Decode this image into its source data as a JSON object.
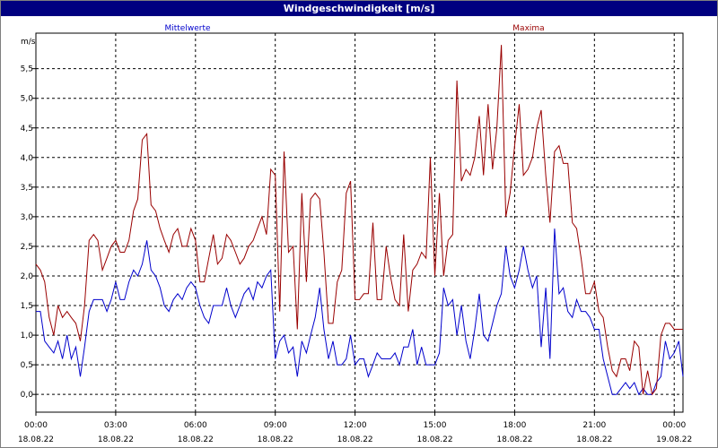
{
  "window": {
    "title": "Windgeschwindigkeit [m/s]"
  },
  "chart_data": {
    "type": "line",
    "title": "Windgeschwindigkeit [m/s]",
    "ylabel": "m/s",
    "ylim": [
      -0.3,
      6.1
    ],
    "y_ticks": [
      "0,0",
      "0,5",
      "1,0",
      "1,5",
      "2,0",
      "2,5",
      "3,0",
      "3,5",
      "4,0",
      "4,5",
      "5,0",
      "5,5"
    ],
    "x_ticks": [
      {
        "time": "00:00",
        "date": "18.08.22"
      },
      {
        "time": "03:00",
        "date": "18.08.22"
      },
      {
        "time": "06:00",
        "date": "18.08.22"
      },
      {
        "time": "09:00",
        "date": "18.08.22"
      },
      {
        "time": "12:00",
        "date": "18.08.22"
      },
      {
        "time": "15:00",
        "date": "18.08.22"
      },
      {
        "time": "18:00",
        "date": "18.08.22"
      },
      {
        "time": "21:00",
        "date": "18.08.22"
      },
      {
        "time": "00:00",
        "date": "19.08.22"
      }
    ],
    "grid": true,
    "series": [
      {
        "name": "Mittelwerte",
        "color": "#0000cc",
        "points": [
          [
            0.0,
            1.4
          ],
          [
            0.17,
            1.4
          ],
          [
            0.33,
            0.9
          ],
          [
            0.5,
            0.8
          ],
          [
            0.67,
            0.7
          ],
          [
            0.83,
            0.9
          ],
          [
            1.0,
            0.6
          ],
          [
            1.17,
            1.0
          ],
          [
            1.33,
            0.6
          ],
          [
            1.5,
            0.8
          ],
          [
            1.67,
            0.3
          ],
          [
            1.83,
            0.8
          ],
          [
            2.0,
            1.4
          ],
          [
            2.17,
            1.6
          ],
          [
            2.33,
            1.6
          ],
          [
            2.5,
            1.6
          ],
          [
            2.67,
            1.4
          ],
          [
            2.83,
            1.6
          ],
          [
            3.0,
            1.9
          ],
          [
            3.17,
            1.6
          ],
          [
            3.33,
            1.6
          ],
          [
            3.5,
            1.9
          ],
          [
            3.67,
            2.1
          ],
          [
            3.83,
            2.0
          ],
          [
            4.0,
            2.2
          ],
          [
            4.17,
            2.6
          ],
          [
            4.33,
            2.1
          ],
          [
            4.5,
            2.0
          ],
          [
            4.67,
            1.8
          ],
          [
            4.83,
            1.5
          ],
          [
            5.0,
            1.4
          ],
          [
            5.17,
            1.6
          ],
          [
            5.33,
            1.7
          ],
          [
            5.5,
            1.6
          ],
          [
            5.67,
            1.8
          ],
          [
            5.83,
            1.9
          ],
          [
            6.0,
            1.8
          ],
          [
            6.17,
            1.5
          ],
          [
            6.33,
            1.3
          ],
          [
            6.5,
            1.2
          ],
          [
            6.67,
            1.5
          ],
          [
            6.83,
            1.5
          ],
          [
            7.0,
            1.5
          ],
          [
            7.17,
            1.8
          ],
          [
            7.33,
            1.5
          ],
          [
            7.5,
            1.3
          ],
          [
            7.67,
            1.5
          ],
          [
            7.83,
            1.7
          ],
          [
            8.0,
            1.8
          ],
          [
            8.17,
            1.6
          ],
          [
            8.33,
            1.9
          ],
          [
            8.5,
            1.8
          ],
          [
            8.67,
            2.0
          ],
          [
            8.83,
            2.1
          ],
          [
            9.0,
            0.6
          ],
          [
            9.17,
            0.9
          ],
          [
            9.33,
            1.0
          ],
          [
            9.5,
            0.7
          ],
          [
            9.67,
            0.8
          ],
          [
            9.83,
            0.3
          ],
          [
            10.0,
            0.9
          ],
          [
            10.17,
            0.7
          ],
          [
            10.33,
            1.0
          ],
          [
            10.5,
            1.3
          ],
          [
            10.67,
            1.8
          ],
          [
            10.83,
            1.1
          ],
          [
            11.0,
            0.6
          ],
          [
            11.17,
            0.9
          ],
          [
            11.33,
            0.5
          ],
          [
            11.5,
            0.5
          ],
          [
            11.67,
            0.6
          ],
          [
            11.83,
            1.0
          ],
          [
            12.0,
            0.5
          ],
          [
            12.17,
            0.6
          ],
          [
            12.33,
            0.6
          ],
          [
            12.5,
            0.3
          ],
          [
            12.67,
            0.5
          ],
          [
            12.83,
            0.7
          ],
          [
            13.0,
            0.6
          ],
          [
            13.17,
            0.6
          ],
          [
            13.33,
            0.6
          ],
          [
            13.5,
            0.7
          ],
          [
            13.67,
            0.5
          ],
          [
            13.83,
            0.8
          ],
          [
            14.0,
            0.8
          ],
          [
            14.17,
            1.1
          ],
          [
            14.33,
            0.5
          ],
          [
            14.5,
            0.8
          ],
          [
            14.67,
            0.5
          ],
          [
            14.83,
            0.5
          ],
          [
            15.0,
            0.5
          ],
          [
            15.17,
            0.7
          ],
          [
            15.33,
            1.8
          ],
          [
            15.5,
            1.5
          ],
          [
            15.67,
            1.6
          ],
          [
            15.83,
            1.0
          ],
          [
            16.0,
            1.5
          ],
          [
            16.17,
            0.9
          ],
          [
            16.33,
            0.6
          ],
          [
            16.5,
            1.1
          ],
          [
            16.67,
            1.7
          ],
          [
            16.83,
            1.0
          ],
          [
            17.0,
            0.9
          ],
          [
            17.17,
            1.2
          ],
          [
            17.33,
            1.5
          ],
          [
            17.5,
            1.7
          ],
          [
            17.67,
            2.5
          ],
          [
            17.83,
            2.0
          ],
          [
            18.0,
            1.8
          ],
          [
            18.17,
            2.1
          ],
          [
            18.33,
            2.5
          ],
          [
            18.5,
            2.1
          ],
          [
            18.67,
            1.8
          ],
          [
            18.83,
            2.0
          ],
          [
            19.0,
            0.8
          ],
          [
            19.17,
            1.8
          ],
          [
            19.33,
            0.6
          ],
          [
            19.5,
            2.8
          ],
          [
            19.67,
            1.7
          ],
          [
            19.83,
            1.8
          ],
          [
            20.0,
            1.4
          ],
          [
            20.17,
            1.3
          ],
          [
            20.33,
            1.6
          ],
          [
            20.5,
            1.4
          ],
          [
            20.67,
            1.4
          ],
          [
            20.83,
            1.3
          ],
          [
            21.0,
            1.1
          ],
          [
            21.17,
            1.1
          ],
          [
            21.33,
            0.6
          ],
          [
            21.5,
            0.3
          ],
          [
            21.67,
            0.0
          ],
          [
            21.83,
            0.0
          ],
          [
            22.0,
            0.1
          ],
          [
            22.17,
            0.2
          ],
          [
            22.33,
            0.1
          ],
          [
            22.5,
            0.2
          ],
          [
            22.67,
            0.0
          ],
          [
            22.83,
            0.1
          ],
          [
            23.0,
            0.0
          ],
          [
            23.17,
            0.0
          ],
          [
            23.33,
            0.2
          ],
          [
            23.5,
            0.3
          ],
          [
            23.67,
            0.9
          ],
          [
            23.83,
            0.6
          ],
          [
            24.0,
            0.7
          ],
          [
            24.17,
            0.9
          ],
          [
            24.33,
            0.3
          ]
        ]
      },
      {
        "name": "Maxima",
        "color": "#990000",
        "points": [
          [
            0.0,
            2.2
          ],
          [
            0.17,
            2.1
          ],
          [
            0.33,
            1.9
          ],
          [
            0.5,
            1.3
          ],
          [
            0.67,
            1.0
          ],
          [
            0.83,
            1.5
          ],
          [
            1.0,
            1.3
          ],
          [
            1.17,
            1.4
          ],
          [
            1.33,
            1.3
          ],
          [
            1.5,
            1.2
          ],
          [
            1.67,
            0.9
          ],
          [
            1.83,
            1.5
          ],
          [
            2.0,
            2.6
          ],
          [
            2.17,
            2.7
          ],
          [
            2.33,
            2.6
          ],
          [
            2.5,
            2.1
          ],
          [
            2.67,
            2.3
          ],
          [
            2.83,
            2.5
          ],
          [
            3.0,
            2.6
          ],
          [
            3.17,
            2.4
          ],
          [
            3.33,
            2.4
          ],
          [
            3.5,
            2.6
          ],
          [
            3.67,
            3.1
          ],
          [
            3.83,
            3.3
          ],
          [
            4.0,
            4.3
          ],
          [
            4.17,
            4.4
          ],
          [
            4.33,
            3.2
          ],
          [
            4.5,
            3.1
          ],
          [
            4.67,
            2.8
          ],
          [
            4.83,
            2.6
          ],
          [
            5.0,
            2.4
          ],
          [
            5.17,
            2.7
          ],
          [
            5.33,
            2.8
          ],
          [
            5.5,
            2.5
          ],
          [
            5.67,
            2.5
          ],
          [
            5.83,
            2.8
          ],
          [
            6.0,
            2.6
          ],
          [
            6.17,
            1.9
          ],
          [
            6.33,
            1.9
          ],
          [
            6.5,
            2.3
          ],
          [
            6.67,
            2.7
          ],
          [
            6.83,
            2.2
          ],
          [
            7.0,
            2.3
          ],
          [
            7.17,
            2.7
          ],
          [
            7.33,
            2.6
          ],
          [
            7.5,
            2.4
          ],
          [
            7.67,
            2.2
          ],
          [
            7.83,
            2.3
          ],
          [
            8.0,
            2.5
          ],
          [
            8.17,
            2.6
          ],
          [
            8.33,
            2.8
          ],
          [
            8.5,
            3.0
          ],
          [
            8.67,
            2.7
          ],
          [
            8.83,
            3.8
          ],
          [
            9.0,
            3.7
          ],
          [
            9.17,
            1.4
          ],
          [
            9.33,
            4.1
          ],
          [
            9.5,
            2.4
          ],
          [
            9.67,
            2.5
          ],
          [
            9.83,
            1.1
          ],
          [
            10.0,
            3.4
          ],
          [
            10.17,
            1.9
          ],
          [
            10.33,
            3.3
          ],
          [
            10.5,
            3.4
          ],
          [
            10.67,
            3.3
          ],
          [
            10.83,
            2.4
          ],
          [
            11.0,
            1.2
          ],
          [
            11.17,
            1.2
          ],
          [
            11.33,
            1.9
          ],
          [
            11.5,
            2.1
          ],
          [
            11.67,
            3.4
          ],
          [
            11.83,
            3.6
          ],
          [
            12.0,
            1.6
          ],
          [
            12.17,
            1.6
          ],
          [
            12.33,
            1.7
          ],
          [
            12.5,
            1.7
          ],
          [
            12.67,
            2.9
          ],
          [
            12.83,
            1.6
          ],
          [
            13.0,
            1.6
          ],
          [
            13.17,
            2.5
          ],
          [
            13.33,
            2.0
          ],
          [
            13.5,
            1.6
          ],
          [
            13.67,
            1.5
          ],
          [
            13.83,
            2.7
          ],
          [
            14.0,
            1.4
          ],
          [
            14.17,
            2.1
          ],
          [
            14.33,
            2.2
          ],
          [
            14.5,
            2.4
          ],
          [
            14.67,
            2.3
          ],
          [
            14.83,
            4.0
          ],
          [
            15.0,
            2.0
          ],
          [
            15.17,
            3.4
          ],
          [
            15.33,
            2.0
          ],
          [
            15.5,
            2.6
          ],
          [
            15.67,
            2.7
          ],
          [
            15.83,
            5.3
          ],
          [
            16.0,
            3.6
          ],
          [
            16.17,
            3.8
          ],
          [
            16.33,
            3.7
          ],
          [
            16.5,
            4.0
          ],
          [
            16.67,
            4.7
          ],
          [
            16.83,
            3.7
          ],
          [
            17.0,
            4.9
          ],
          [
            17.17,
            3.8
          ],
          [
            17.33,
            4.5
          ],
          [
            17.5,
            5.9
          ],
          [
            17.67,
            3.0
          ],
          [
            17.83,
            3.4
          ],
          [
            18.0,
            4.2
          ],
          [
            18.17,
            4.9
          ],
          [
            18.33,
            3.7
          ],
          [
            18.5,
            3.8
          ],
          [
            18.67,
            4.0
          ],
          [
            18.83,
            4.5
          ],
          [
            19.0,
            4.8
          ],
          [
            19.17,
            3.7
          ],
          [
            19.33,
            2.9
          ],
          [
            19.5,
            4.1
          ],
          [
            19.67,
            4.2
          ],
          [
            19.83,
            3.9
          ],
          [
            20.0,
            3.9
          ],
          [
            20.17,
            2.9
          ],
          [
            20.33,
            2.8
          ],
          [
            20.5,
            2.3
          ],
          [
            20.67,
            1.7
          ],
          [
            20.83,
            1.7
          ],
          [
            21.0,
            1.9
          ],
          [
            21.17,
            1.4
          ],
          [
            21.33,
            1.3
          ],
          [
            21.5,
            0.8
          ],
          [
            21.67,
            0.4
          ],
          [
            21.83,
            0.3
          ],
          [
            22.0,
            0.6
          ],
          [
            22.17,
            0.6
          ],
          [
            22.33,
            0.4
          ],
          [
            22.5,
            0.9
          ],
          [
            22.67,
            0.8
          ],
          [
            22.83,
            0.0
          ],
          [
            23.0,
            0.4
          ],
          [
            23.17,
            0.0
          ],
          [
            23.33,
            0.1
          ],
          [
            23.5,
            1.0
          ],
          [
            23.67,
            1.2
          ],
          [
            23.83,
            1.2
          ],
          [
            24.0,
            1.1
          ],
          [
            24.17,
            1.1
          ],
          [
            24.33,
            1.1
          ]
        ]
      }
    ]
  }
}
